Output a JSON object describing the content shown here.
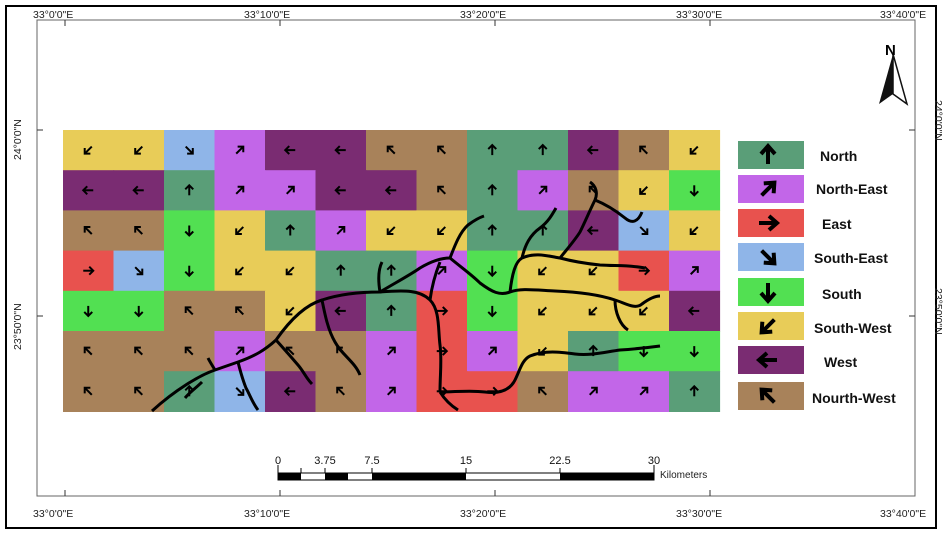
{
  "map": {
    "top_lon_labels": [
      "33°0'0\"E",
      "33°10'0\"E",
      "33°20'0\"E",
      "33°30'0\"E",
      "33°40'0\"E"
    ],
    "bottom_lon_labels": [
      "33°0'0\"E",
      "33°10'0\"E",
      "33°20'0\"E",
      "33°30'0\"E",
      "33°40'0\"E"
    ],
    "lat_labels": [
      "24°0'0\"N",
      "23°50'0\"N"
    ],
    "north_label": "N",
    "scale": {
      "ticks": [
        "0",
        "3.75",
        "7.5",
        "15",
        "22.5",
        "30"
      ],
      "unit": "Kilometers"
    },
    "legend": [
      {
        "label": "North",
        "color": "#5a9e78",
        "dir": "N"
      },
      {
        "label": "North-East",
        "color": "#c266e8",
        "dir": "NE"
      },
      {
        "label": "East",
        "color": "#e8524e",
        "dir": "E"
      },
      {
        "label": "South-East",
        "color": "#8fb5e8",
        "dir": "SE"
      },
      {
        "label": "South",
        "color": "#52e052",
        "dir": "S"
      },
      {
        "label": "South-West",
        "color": "#e8cc58",
        "dir": "SW"
      },
      {
        "label": "West",
        "color": "#7a2c72",
        "dir": "W"
      },
      {
        "label": "Nourth-West",
        "color": "#a8825a",
        "dir": "NW"
      }
    ],
    "grid": [
      [
        "SW",
        "SW",
        "SE",
        "NE",
        "W",
        "W",
        "NW",
        "NW",
        "N",
        "N",
        "W",
        "NW",
        "SW"
      ],
      [
        "W",
        "W",
        "N",
        "NE",
        "NE",
        "W",
        "W",
        "NW",
        "N",
        "NE",
        "NW",
        "SW",
        "S"
      ],
      [
        "NW",
        "NW",
        "S",
        "SW",
        "N",
        "NE",
        "SW",
        "SW",
        "N",
        "N",
        "W",
        "SE",
        "SW"
      ],
      [
        "E",
        "SE",
        "S",
        "SW",
        "SW",
        "N",
        "N",
        "NE",
        "S",
        "SW",
        "SW",
        "E",
        "NE"
      ],
      [
        "S",
        "S",
        "NW",
        "NW",
        "SW",
        "W",
        "N",
        "E",
        "S",
        "SW",
        "SW",
        "SW",
        "W"
      ],
      [
        "NW",
        "NW",
        "NW",
        "NE",
        "NW",
        "NW",
        "NE",
        "E",
        "NE",
        "SW",
        "N",
        "S",
        "S"
      ],
      [
        "NW",
        "NW",
        "N",
        "SE",
        "W",
        "NW",
        "NE",
        "E",
        "E",
        "NW",
        "NE",
        "NE",
        "N"
      ]
    ]
  }
}
